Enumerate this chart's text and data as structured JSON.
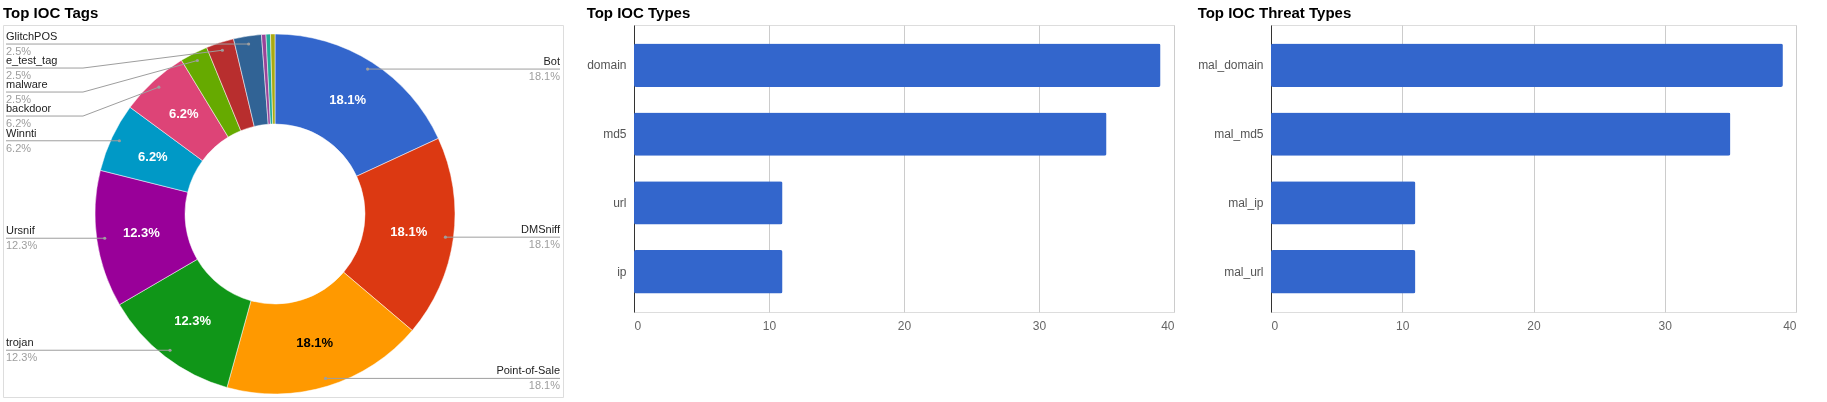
{
  "chart_data": [
    {
      "type": "donut",
      "title": "Top IOC Tags",
      "categories": [
        "Bot",
        "DMSniff",
        "Point-of-Sale",
        "trojan",
        "Ursnif",
        "Winnti",
        "backdoor",
        "malware",
        "e_test_tag",
        "GlitchPOS",
        null,
        null,
        null
      ],
      "values": [
        18.1,
        18.1,
        18.1,
        12.3,
        12.3,
        6.2,
        6.2,
        2.5,
        2.5,
        2.5,
        0.4,
        0.4,
        0.4
      ],
      "value_labels": [
        "18.1%",
        "18.1%",
        "18.1%",
        "12.3%",
        "12.3%",
        "6.2%",
        "6.2%",
        "2.5%",
        "2.5%",
        "2.5%",
        null,
        null,
        null
      ],
      "colors": [
        "#3366cc",
        "#dc3912",
        "#ff9900",
        "#109618",
        "#990099",
        "#0099c6",
        "#dd4477",
        "#66aa00",
        "#b82e2e",
        "#316395",
        "#994499",
        "#22aa99",
        "#aaaa11"
      ]
    },
    {
      "type": "bar",
      "orientation": "horizontal",
      "title": "Top IOC Types",
      "categories": [
        "domain",
        "md5",
        "url",
        "ip"
      ],
      "values": [
        39,
        35,
        11,
        11
      ],
      "color": "#3366cc",
      "xlim": [
        0,
        40
      ],
      "xticks": [
        0,
        10,
        20,
        30,
        40
      ],
      "grid": "x"
    },
    {
      "type": "bar",
      "orientation": "horizontal",
      "title": "Top IOC Threat Types",
      "categories": [
        "mal_domain",
        "mal_md5",
        "mal_ip",
        "mal_url"
      ],
      "values": [
        39,
        35,
        11,
        11
      ],
      "color": "#3366cc",
      "xlim": [
        0,
        40
      ],
      "xticks": [
        0,
        10,
        20,
        30,
        40
      ],
      "grid": "x"
    }
  ]
}
